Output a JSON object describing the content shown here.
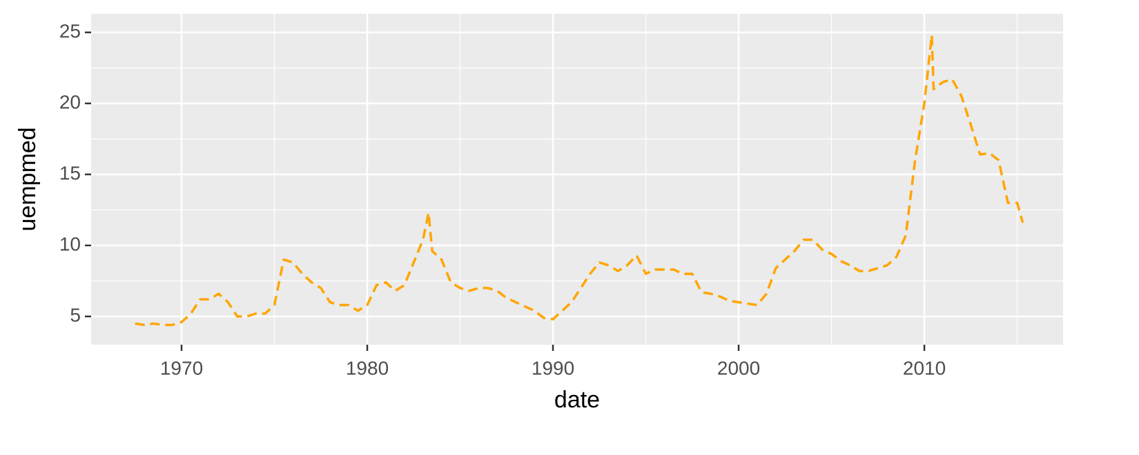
{
  "chart_data": {
    "type": "line",
    "x_label": "date",
    "y_label": "uempmed",
    "x": [
      1967.5,
      1968,
      1968.5,
      1969,
      1969.5,
      1970,
      1970.5,
      1971,
      1971.5,
      1972,
      1972.5,
      1973,
      1973.5,
      1974,
      1974.5,
      1975,
      1975.5,
      1976,
      1976.5,
      1977,
      1977.5,
      1978,
      1978.5,
      1979,
      1979.5,
      1980,
      1980.5,
      1981,
      1981.5,
      1982,
      1982.5,
      1983,
      1983.3,
      1983.5,
      1984,
      1984.5,
      1985,
      1985.5,
      1986,
      1986.5,
      1987,
      1987.5,
      1988,
      1988.5,
      1989,
      1989.5,
      1990,
      1990.5,
      1991,
      1991.5,
      1992,
      1992.5,
      1993,
      1993.5,
      1994,
      1994.5,
      1995,
      1995.5,
      1996,
      1996.5,
      1997,
      1997.5,
      1998,
      1998.5,
      1999,
      1999.5,
      2000,
      2000.5,
      2001,
      2001.5,
      2002,
      2002.5,
      2003,
      2003.5,
      2004,
      2004.5,
      2005,
      2005.5,
      2006,
      2006.5,
      2007,
      2007.5,
      2008,
      2008.5,
      2009,
      2009.5,
      2010,
      2010.4,
      2010.5,
      2011,
      2011.5,
      2012,
      2012.5,
      2013,
      2013.5,
      2014,
      2014.5,
      2015,
      2015.3
    ],
    "series": [
      {
        "name": "uempmed",
        "color": "#ffa500",
        "dashed": true,
        "values": [
          4.5,
          4.4,
          4.5,
          4.4,
          4.4,
          4.6,
          5.2,
          6.2,
          6.2,
          6.6,
          6.0,
          5.0,
          5.0,
          5.2,
          5.2,
          5.8,
          9.0,
          8.8,
          8.0,
          7.4,
          7.0,
          6.0,
          5.8,
          5.8,
          5.4,
          5.8,
          7.2,
          7.4,
          6.8,
          7.2,
          8.8,
          10.4,
          12.3,
          9.6,
          9.0,
          7.4,
          7.0,
          6.8,
          7.0,
          7.0,
          6.8,
          6.3,
          6.0,
          5.7,
          5.4,
          4.9,
          4.8,
          5.4,
          6.0,
          7.0,
          8.0,
          8.8,
          8.6,
          8.2,
          8.6,
          9.3,
          8.0,
          8.3,
          8.3,
          8.3,
          8.0,
          8.0,
          6.7,
          6.6,
          6.4,
          6.1,
          6.0,
          5.9,
          5.8,
          6.6,
          8.4,
          9.0,
          9.6,
          10.4,
          10.4,
          9.7,
          9.4,
          8.9,
          8.6,
          8.2,
          8.2,
          8.4,
          8.6,
          9.2,
          10.7,
          16.0,
          20.0,
          24.8,
          21.0,
          21.5,
          21.7,
          20.5,
          18.5,
          16.4,
          16.5,
          16.0,
          13.0,
          13.0,
          11.6
        ]
      }
    ],
    "xlim": [
      1965.13,
      2017.47
    ],
    "xticks": [
      1970,
      1980,
      1990,
      2000,
      2010
    ],
    "xminor": [
      1975,
      1985,
      1995,
      2005,
      2015
    ],
    "ylim": [
      3.01,
      26.31
    ],
    "yticks": [
      5,
      10,
      15,
      20,
      25
    ],
    "yminor": [
      7.5,
      12.5,
      17.5,
      22.5
    ],
    "grid": true,
    "background": "#ebebeb"
  }
}
